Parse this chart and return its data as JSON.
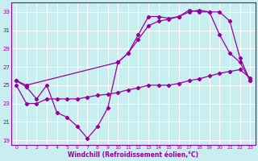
{
  "xlabel": "Windchill (Refroidissement éolien,°C)",
  "background_color": "#c8eef0",
  "grid_color": "#b0dde0",
  "line_color": "#990099",
  "xlim": [
    -0.5,
    23.5
  ],
  "ylim": [
    18.5,
    34.0
  ],
  "yticks": [
    19,
    21,
    23,
    25,
    27,
    29,
    31,
    33
  ],
  "xticks": [
    0,
    1,
    2,
    3,
    4,
    5,
    6,
    7,
    8,
    9,
    10,
    11,
    12,
    13,
    14,
    15,
    16,
    17,
    18,
    19,
    20,
    21,
    22,
    23
  ],
  "series1_x": [
    0,
    1,
    2,
    3,
    4,
    5,
    6,
    7,
    8,
    9,
    10,
    11,
    12,
    13,
    14,
    15,
    16,
    17,
    18,
    19,
    20,
    21,
    22,
    23
  ],
  "series1_y": [
    25.5,
    24.8,
    23.5,
    25.0,
    22.0,
    21.5,
    20.5,
    19.2,
    20.5,
    22.5,
    27.5,
    28.5,
    30.5,
    32.5,
    32.5,
    32.3,
    32.5,
    33.2,
    33.0,
    33.0,
    30.5,
    28.5,
    27.5,
    25.5
  ],
  "series2_x": [
    0,
    1,
    2,
    3,
    4,
    5,
    6,
    7,
    8,
    9,
    10,
    11,
    12,
    13,
    14,
    15,
    16,
    17,
    18,
    19,
    20,
    21,
    22,
    23
  ],
  "series2_y": [
    25.0,
    23.0,
    23.0,
    23.5,
    23.5,
    23.5,
    23.5,
    23.7,
    23.9,
    24.0,
    24.2,
    24.5,
    24.7,
    25.0,
    25.0,
    25.0,
    25.2,
    25.5,
    25.7,
    26.0,
    26.3,
    26.5,
    26.7,
    25.8
  ],
  "series3_x": [
    0,
    1,
    10,
    11,
    12,
    13,
    14,
    15,
    16,
    17,
    18,
    19,
    20,
    21,
    22,
    23
  ],
  "series3_y": [
    25.5,
    25.0,
    27.5,
    28.5,
    30.0,
    31.5,
    32.0,
    32.2,
    32.5,
    33.0,
    33.2,
    33.0,
    33.0,
    32.0,
    28.0,
    25.5
  ]
}
